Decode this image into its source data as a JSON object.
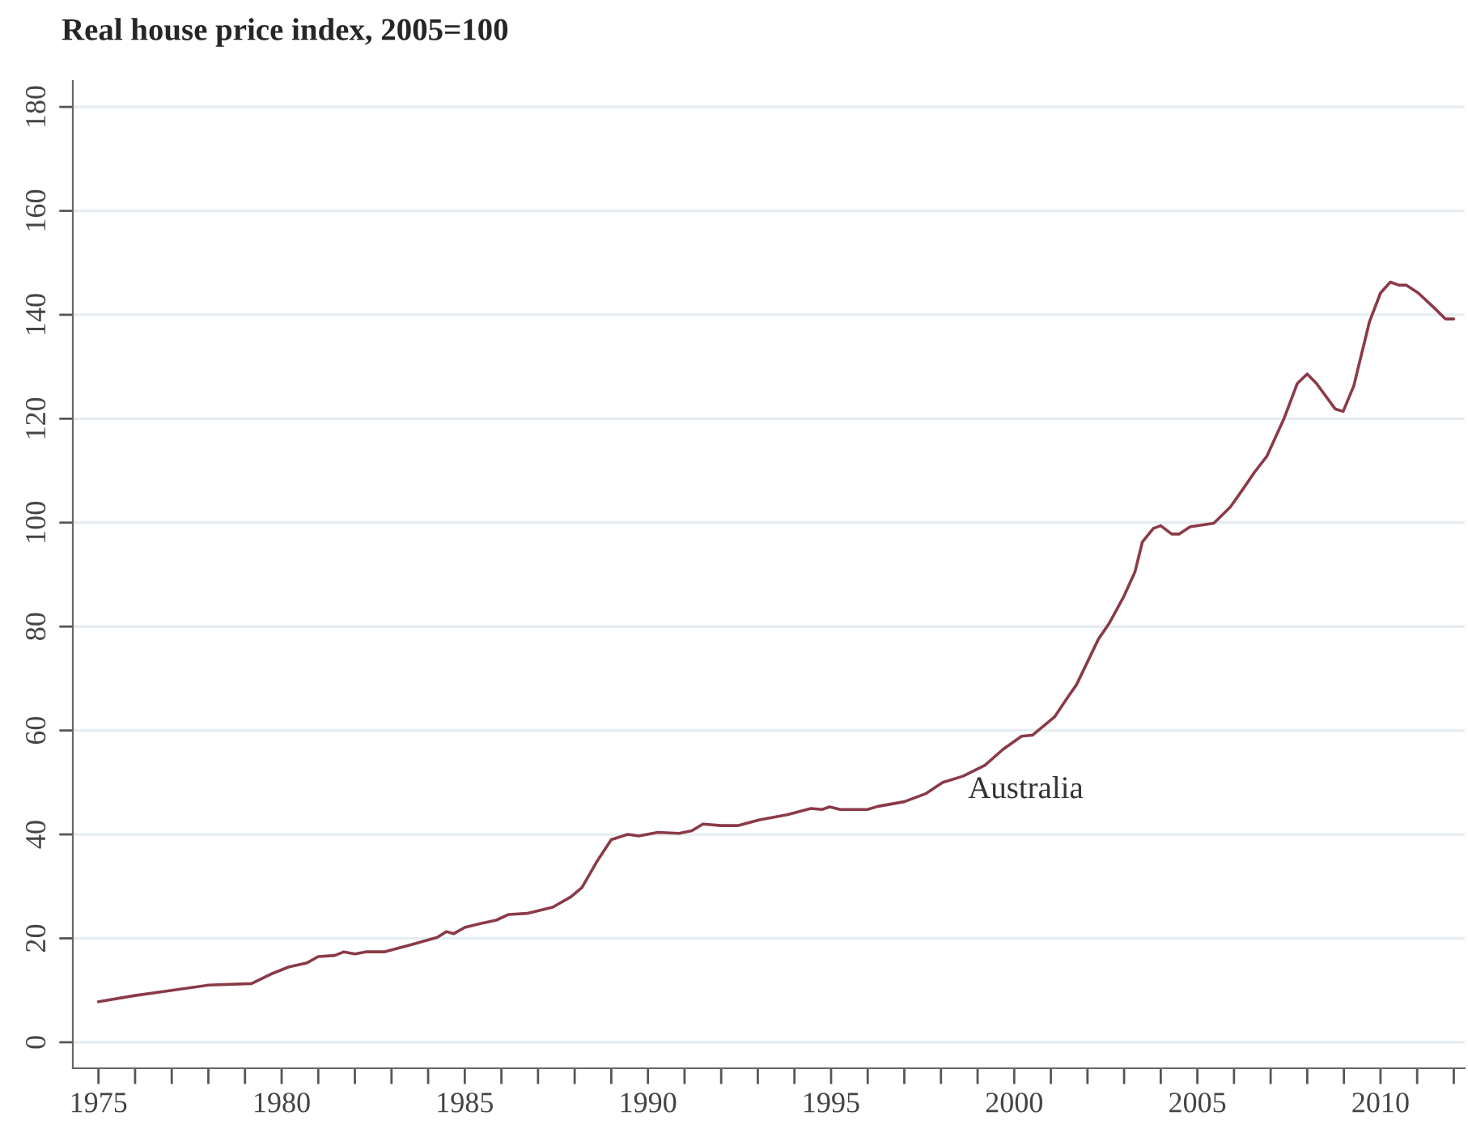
{
  "chart_data": {
    "type": "line",
    "title": "Real house price index, 2005=100",
    "x": [
      1975.0,
      1976.0,
      1977.0,
      1978.0,
      1979.18,
      1979.7,
      1980.2,
      1980.7,
      1981.0,
      1981.45,
      1981.7,
      1982.0,
      1982.3,
      1982.8,
      1983.5,
      1984.25,
      1984.5,
      1984.7,
      1985.0,
      1985.4,
      1985.86,
      1986.2,
      1986.7,
      1987.4,
      1987.9,
      1988.2,
      1988.6,
      1989.0,
      1989.45,
      1989.75,
      1990.27,
      1990.85,
      1991.2,
      1991.5,
      1992.0,
      1992.45,
      1993.05,
      1993.8,
      1994.45,
      1994.75,
      1994.96,
      1995.25,
      1995.99,
      1996.28,
      1997.0,
      1997.6,
      1998.05,
      1998.6,
      1999.2,
      1999.7,
      2000.2,
      2000.5,
      2001.1,
      2001.5,
      2001.7,
      2002.3,
      2002.6,
      2003.0,
      2003.3,
      2003.5,
      2003.8,
      2004.0,
      2004.3,
      2004.5,
      2004.8,
      2005.45,
      2005.9,
      2006.26,
      2006.56,
      2006.9,
      2007.37,
      2007.73,
      2008.0,
      2008.25,
      2008.76,
      2008.98,
      2009.27,
      2009.7,
      2010.0,
      2010.27,
      2010.5,
      2010.7,
      2011.03,
      2011.5,
      2011.77,
      2012.0
    ],
    "series": [
      {
        "name": "Australia",
        "color": "#8b3a47",
        "values": [
          7.8,
          9.0,
          10.0,
          11.0,
          11.3,
          13.1,
          14.5,
          15.3,
          16.5,
          16.7,
          17.4,
          17.0,
          17.4,
          17.4,
          18.7,
          20.2,
          21.3,
          20.9,
          22.1,
          22.8,
          23.5,
          24.6,
          24.8,
          26.0,
          28.0,
          29.8,
          34.7,
          39.0,
          40.0,
          39.7,
          40.4,
          40.2,
          40.7,
          42.0,
          41.7,
          41.7,
          42.8,
          43.8,
          45.0,
          44.8,
          45.3,
          44.8,
          44.8,
          45.4,
          46.3,
          47.9,
          50.0,
          51.2,
          53.3,
          56.4,
          58.9,
          59.1,
          62.6,
          66.8,
          68.8,
          77.6,
          80.7,
          85.9,
          90.6,
          96.3,
          98.9,
          99.4,
          97.8,
          97.8,
          99.2,
          99.9,
          103.0,
          106.6,
          109.7,
          112.8,
          120.1,
          126.8,
          128.6,
          126.8,
          121.9,
          121.4,
          126.3,
          138.7,
          144.2,
          146.3,
          145.7,
          145.7,
          144.2,
          141.1,
          139.2,
          139.2
        ]
      }
    ],
    "xlim": [
      1974.3,
      2012.3
    ],
    "ylim": [
      -5,
      185
    ],
    "xticks": [
      1975,
      {
        "value": 1976,
        "label": null
      },
      {
        "value": 1977,
        "label": null
      },
      {
        "value": 1978,
        "label": null
      },
      {
        "value": 1979,
        "label": null
      },
      1980,
      {
        "value": 1981,
        "label": null
      },
      {
        "value": 1982,
        "label": null
      },
      {
        "value": 1983,
        "label": null
      },
      {
        "value": 1984,
        "label": null
      },
      1985,
      {
        "value": 1986,
        "label": null
      },
      {
        "value": 1987,
        "label": null
      },
      {
        "value": 1988,
        "label": null
      },
      {
        "value": 1989,
        "label": null
      },
      1990,
      {
        "value": 1991,
        "label": null
      },
      {
        "value": 1992,
        "label": null
      },
      {
        "value": 1993,
        "label": null
      },
      {
        "value": 1994,
        "label": null
      },
      1995,
      {
        "value": 1996,
        "label": null
      },
      {
        "value": 1997,
        "label": null
      },
      {
        "value": 1998,
        "label": null
      },
      {
        "value": 1999,
        "label": null
      },
      2000,
      {
        "value": 2001,
        "label": null
      },
      {
        "value": 2002,
        "label": null
      },
      {
        "value": 2003,
        "label": null
      },
      {
        "value": 2004,
        "label": null
      },
      2005,
      {
        "value": 2006,
        "label": null
      },
      {
        "value": 2007,
        "label": null
      },
      {
        "value": 2008,
        "label": null
      },
      {
        "value": 2009,
        "label": null
      },
      2010,
      {
        "value": 2011,
        "label": null
      },
      {
        "value": 2012,
        "label": null
      }
    ],
    "yticks": [
      0,
      20,
      40,
      60,
      80,
      100,
      120,
      140,
      160,
      180
    ],
    "grid": "y",
    "marker": "none",
    "line_style": "solid"
  }
}
